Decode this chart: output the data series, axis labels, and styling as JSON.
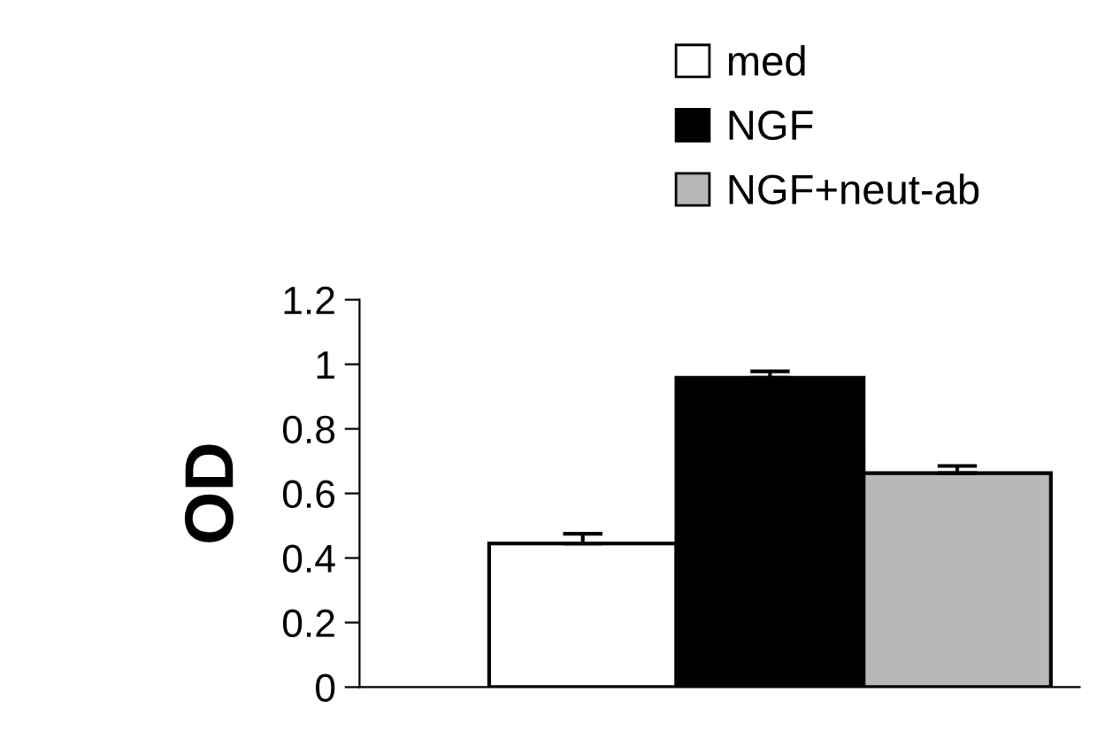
{
  "chart_data": {
    "type": "bar",
    "ylabel": "OD",
    "categories": [
      null
    ],
    "series": [
      {
        "name": "med",
        "color": "#ffffff",
        "values": [
          0.445
        ],
        "errors": [
          [
            0.445,
            0.475
          ]
        ]
      },
      {
        "name": "NGF",
        "color": "#000000",
        "values": [
          0.958
        ],
        "errors": [
          [
            0.958,
            0.978
          ]
        ]
      },
      {
        "name": "NGF+neut-ab",
        "color": "#b8b8b8",
        "values": [
          0.663
        ],
        "errors": [
          [
            0.663,
            0.685
          ]
        ]
      }
    ],
    "ylim": [
      0,
      1.2
    ],
    "yticks": [
      0,
      0.2,
      0.4,
      0.6,
      0.8,
      1,
      1.2
    ],
    "grid": false,
    "legend": "top right"
  }
}
